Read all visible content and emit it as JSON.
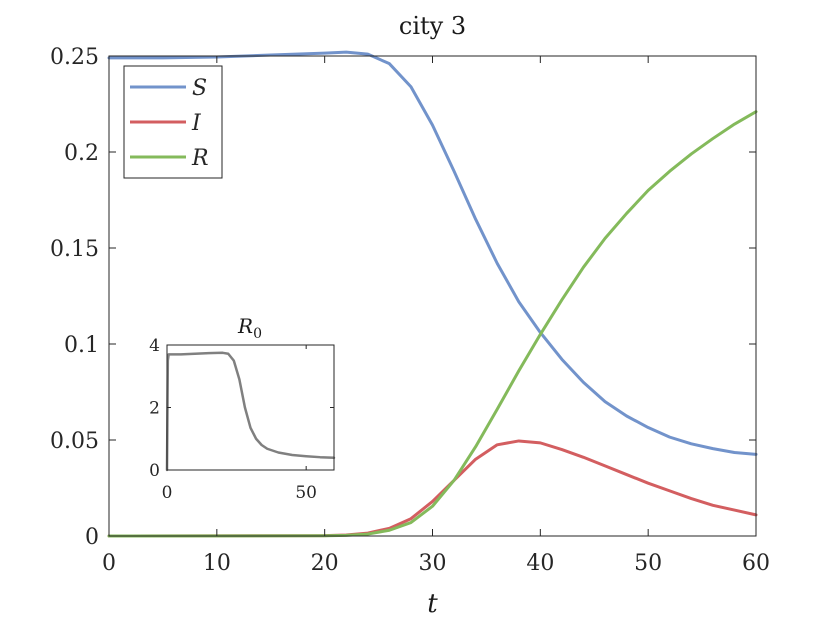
{
  "chart_data": [
    {
      "type": "line",
      "title": "city 3",
      "xlabel": "t",
      "ylabel": "",
      "xlim": [
        0,
        60
      ],
      "ylim": [
        0,
        0.25
      ],
      "xticks": [
        0,
        10,
        20,
        30,
        40,
        50,
        60
      ],
      "yticks": [
        0,
        0.05,
        0.1,
        0.15,
        0.2,
        0.25
      ],
      "xtick_labels": [
        "0",
        "10",
        "20",
        "30",
        "40",
        "50",
        "60"
      ],
      "ytick_labels": [
        "0",
        "0.05",
        "0.1",
        "0.15",
        "0.2",
        "0.25"
      ],
      "grid": false,
      "legend_position": "top-left",
      "series": [
        {
          "name": "S",
          "color": "#7293cb",
          "x": [
            0,
            5,
            10,
            15,
            20,
            22,
            24,
            26,
            28,
            30,
            32,
            34,
            36,
            38,
            40,
            42,
            44,
            46,
            48,
            50,
            52,
            54,
            56,
            58,
            60
          ],
          "y": [
            0.249,
            0.249,
            0.2495,
            0.2505,
            0.2515,
            0.252,
            0.251,
            0.246,
            0.234,
            0.214,
            0.19,
            0.165,
            0.142,
            0.122,
            0.106,
            0.092,
            0.08,
            0.07,
            0.0625,
            0.0565,
            0.0515,
            0.048,
            0.0455,
            0.0435,
            0.0425
          ]
        },
        {
          "name": "I",
          "color": "#d35e60",
          "x": [
            0,
            20,
            22,
            24,
            26,
            28,
            30,
            32,
            34,
            36,
            38,
            40,
            42,
            44,
            46,
            48,
            50,
            52,
            54,
            56,
            58,
            60
          ],
          "y": [
            0,
            0.0002,
            0.0005,
            0.0015,
            0.004,
            0.009,
            0.018,
            0.029,
            0.04,
            0.0475,
            0.0495,
            0.0485,
            0.045,
            0.041,
            0.0365,
            0.032,
            0.0275,
            0.0235,
            0.0195,
            0.016,
            0.0135,
            0.011
          ]
        },
        {
          "name": "R",
          "color": "#84ba5b",
          "x": [
            0,
            20,
            22,
            24,
            26,
            28,
            30,
            32,
            34,
            36,
            38,
            40,
            42,
            44,
            46,
            48,
            50,
            52,
            54,
            56,
            58,
            60
          ],
          "y": [
            0,
            0.0001,
            0.0003,
            0.001,
            0.003,
            0.007,
            0.0155,
            0.029,
            0.0465,
            0.066,
            0.086,
            0.105,
            0.123,
            0.14,
            0.155,
            0.168,
            0.18,
            0.19,
            0.199,
            0.207,
            0.2145,
            0.221
          ]
        }
      ]
    },
    {
      "type": "line",
      "title": "R",
      "title_subscript": "0",
      "xlim": [
        0,
        60
      ],
      "ylim": [
        0,
        4
      ],
      "xticks": [
        0,
        50
      ],
      "yticks": [
        0,
        2,
        4
      ],
      "xtick_labels": [
        "0",
        "50"
      ],
      "ytick_labels": [
        "0",
        "2",
        "4"
      ],
      "grid": false,
      "series": [
        {
          "color": "#808080",
          "x": [
            0,
            0.3,
            0.6,
            5,
            10,
            15,
            20,
            22,
            24,
            26,
            28,
            30,
            32,
            34,
            36,
            40,
            45,
            50,
            55,
            60
          ],
          "y": [
            0,
            3.5,
            3.7,
            3.7,
            3.72,
            3.74,
            3.75,
            3.72,
            3.5,
            2.9,
            2.0,
            1.35,
            1.0,
            0.8,
            0.68,
            0.56,
            0.48,
            0.44,
            0.41,
            0.39
          ]
        }
      ]
    }
  ]
}
